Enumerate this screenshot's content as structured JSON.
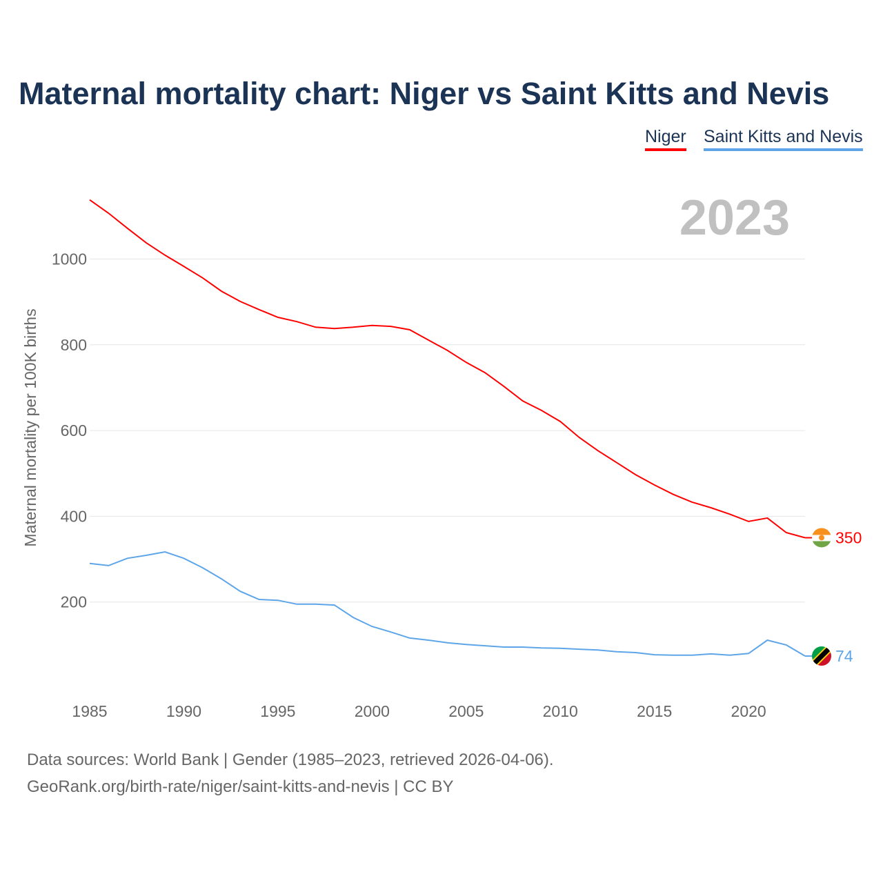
{
  "title": "Maternal mortality chart: Niger vs Saint Kitts and Nevis",
  "chart_data": {
    "type": "line",
    "title": "Maternal mortality chart: Niger vs Saint Kitts and Nevis",
    "ylabel": "Maternal mortality per 100K births",
    "xlabel": "",
    "year_label": "2023",
    "xlim": [
      1985,
      2023
    ],
    "ylim": [
      0,
      1150
    ],
    "x_ticks": [
      1985,
      1990,
      1995,
      2000,
      2005,
      2010,
      2015,
      2020
    ],
    "y_ticks": [
      200,
      400,
      600,
      800,
      1000
    ],
    "grid": true,
    "legend_position": "top-right",
    "x": [
      1985,
      1986,
      1987,
      1988,
      1989,
      1990,
      1991,
      1992,
      1993,
      1994,
      1995,
      1996,
      1997,
      1998,
      1999,
      2000,
      2001,
      2002,
      2003,
      2004,
      2005,
      2006,
      2007,
      2008,
      2009,
      2010,
      2011,
      2012,
      2013,
      2014,
      2015,
      2016,
      2017,
      2018,
      2019,
      2020,
      2021,
      2022,
      2023
    ],
    "series": [
      {
        "name": "Niger",
        "color": "#ff0000",
        "end_label": "350",
        "values": [
          1138,
          1107,
          1072,
          1038,
          1009,
          983,
          956,
          925,
          901,
          882,
          864,
          854,
          841,
          838,
          841,
          845,
          843,
          835,
          811,
          787,
          759,
          735,
          703,
          669,
          647,
          621,
          584,
          553,
          525,
          497,
          473,
          451,
          433,
          420,
          405,
          388,
          396,
          362,
          350
        ]
      },
      {
        "name": "Saint Kitts and Nevis",
        "color": "#5da5e8",
        "end_label": "74",
        "values": [
          290,
          285,
          302,
          309,
          317,
          302,
          280,
          254,
          225,
          206,
          204,
          195,
          195,
          193,
          164,
          143,
          130,
          116,
          111,
          105,
          101,
          98,
          95,
          95,
          93,
          92,
          90,
          88,
          84,
          82,
          77,
          76,
          76,
          79,
          76,
          80,
          111,
          100,
          74
        ]
      }
    ]
  },
  "footer": {
    "line1": "Data sources: World Bank | Gender (1985–2023, retrieved 2026-04-06).",
    "line2": "GeoRank.org/birth-rate/niger/saint-kitts-and-nevis | CC BY"
  }
}
